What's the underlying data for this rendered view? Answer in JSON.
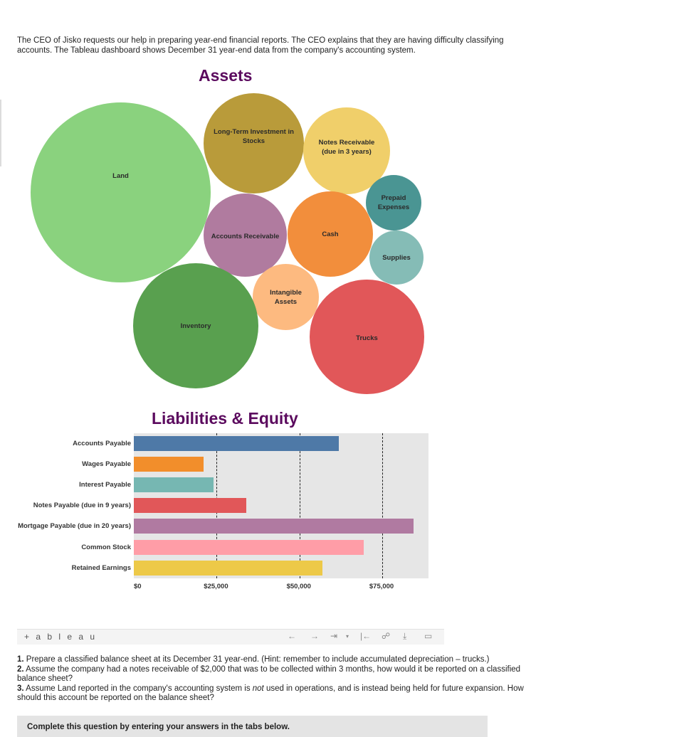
{
  "intro": {
    "line1": "The CEO of Jisko requests our help in preparing year-end financial reports. The CEO explains that they are having difficulty classifying",
    "line2": "accounts. The Tableau dashboard shows December 31 year-end data from the company's accounting system."
  },
  "assets": {
    "title": "Assets",
    "bubbles": [
      {
        "label": "Land",
        "color": "#8ad27e"
      },
      {
        "label": "Long-Term Investment in Stocks",
        "color": "#b99b3a"
      },
      {
        "label": "Notes Receivable (due in 3 years)",
        "color": "#f0cf6a"
      },
      {
        "label": "Prepaid Expenses",
        "color": "#4a9593"
      },
      {
        "label": "Accounts Receivable",
        "color": "#b07b9f"
      },
      {
        "label": "Cash",
        "color": "#f28e3c"
      },
      {
        "label": "Supplies",
        "color": "#85bcb6"
      },
      {
        "label": "Intangible Assets",
        "color": "#fdba80"
      },
      {
        "label": "Inventory",
        "color": "#59a04f"
      },
      {
        "label": "Trucks",
        "color": "#e15759"
      }
    ]
  },
  "chart_data": {
    "type": "bar",
    "orientation": "horizontal",
    "title": "Liabilities & Equity",
    "categories": [
      "Accounts Payable",
      "Wages Payable",
      "Interest Payable",
      "Notes Payable (due in 9 years)",
      "Mortgage Payable (due in 20 years)",
      "Common Stock",
      "Retained Earnings"
    ],
    "values": [
      62000,
      21000,
      24000,
      34000,
      84500,
      69500,
      57000
    ],
    "colors": [
      "#4e79a7",
      "#f28e2b",
      "#76b7b2",
      "#e15759",
      "#b07aa1",
      "#ff9da7",
      "#edc948"
    ],
    "xticks": [
      0,
      25000,
      50000,
      75000
    ],
    "xtick_labels": [
      "$0",
      "$25,000",
      "$50,000",
      "$75,000"
    ],
    "xlim": [
      0,
      89000
    ],
    "grid": "dashed vertical"
  },
  "toolbar": {
    "logo": "+ a b l e a u",
    "icons": [
      "undo-icon",
      "redo-icon",
      "revert-icon",
      "pause-icon",
      "share-icon",
      "download-icon",
      "fullscreen-icon"
    ]
  },
  "questions": {
    "q1_num": "1.",
    "q1": " Prepare a classified balance sheet at its December 31 year-end. (Hint: remember to include accumulated depreciation – trucks.)",
    "q2_num": "2.",
    "q2": " Assume the company had a notes receivable of $2,000 that was to be collected within 3 months, how would it be reported on a classified balance sheet?",
    "q3_num": "3.",
    "q3a": " Assume Land reported in the company's accounting system is ",
    "q3_em": "not",
    "q3b": " used in operations, and is instead being held for future expansion. How should this account be reported on the balance sheet?"
  },
  "bottom": {
    "label": "Complete this question by entering your answers in the tabs below."
  }
}
